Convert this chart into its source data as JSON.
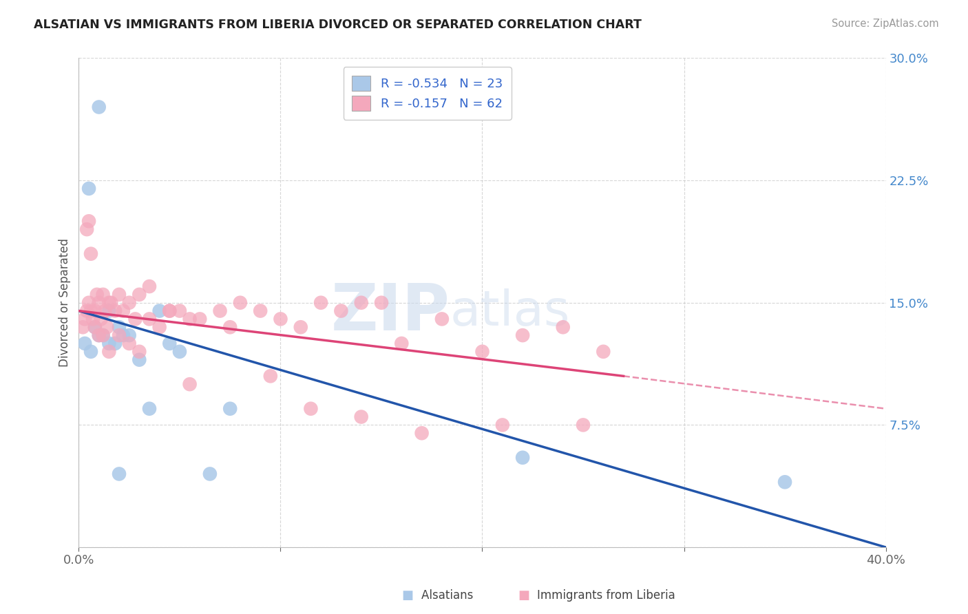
{
  "title": "ALSATIAN VS IMMIGRANTS FROM LIBERIA DIVORCED OR SEPARATED CORRELATION CHART",
  "source": "Source: ZipAtlas.com",
  "ylabel": "Divorced or Separated",
  "watermark_zip": "ZIP",
  "watermark_atlas": "atlas",
  "legend_r": [
    -0.534,
    -0.157
  ],
  "legend_n": [
    23,
    62
  ],
  "blue_color": "#aac8e8",
  "pink_color": "#f4a8bc",
  "blue_line_color": "#2255aa",
  "pink_line_color": "#dd4477",
  "xmin": 0.0,
  "xmax": 40.0,
  "ymin": 0.0,
  "ymax": 30.0,
  "ytick_labels": [
    "",
    "7.5%",
    "15.0%",
    "22.5%",
    "30.0%"
  ],
  "ytick_vals": [
    0.0,
    7.5,
    15.0,
    22.5,
    30.0
  ],
  "xtick_labels": [
    "0.0%",
    "",
    "",
    "",
    "40.0%"
  ],
  "xtick_vals": [
    0.0,
    10.0,
    20.0,
    30.0,
    40.0
  ],
  "blue_x": [
    1.0,
    0.5,
    1.5,
    0.8,
    1.2,
    2.0,
    1.8,
    2.5,
    3.5,
    5.0,
    4.5,
    6.5,
    2.0,
    7.5,
    0.3,
    0.6,
    1.0,
    1.5,
    2.2,
    3.0,
    4.0,
    22.0,
    35.0
  ],
  "blue_y": [
    27.0,
    22.0,
    14.5,
    13.5,
    13.0,
    13.5,
    12.5,
    13.0,
    8.5,
    12.0,
    12.5,
    4.5,
    4.5,
    8.5,
    12.5,
    12.0,
    13.0,
    12.5,
    13.0,
    11.5,
    14.5,
    5.5,
    4.0
  ],
  "pink_x": [
    0.2,
    0.3,
    0.4,
    0.5,
    0.6,
    0.7,
    0.8,
    0.9,
    1.0,
    1.1,
    1.2,
    1.3,
    1.4,
    1.5,
    1.6,
    1.8,
    2.0,
    2.2,
    2.5,
    2.8,
    3.0,
    3.5,
    4.0,
    4.5,
    5.0,
    5.5,
    6.0,
    7.0,
    8.0,
    9.0,
    10.0,
    11.0,
    12.0,
    13.0,
    14.0,
    15.0,
    16.0,
    18.0,
    20.0,
    22.0,
    24.0,
    26.0,
    0.4,
    0.5,
    0.6,
    0.8,
    1.0,
    1.2,
    1.5,
    2.0,
    2.5,
    3.0,
    3.5,
    4.5,
    5.5,
    7.5,
    9.5,
    11.5,
    14.0,
    17.0,
    21.0,
    25.0
  ],
  "pink_y": [
    13.5,
    14.0,
    14.5,
    15.0,
    14.5,
    14.0,
    14.5,
    15.5,
    15.0,
    14.0,
    15.5,
    14.5,
    13.5,
    15.0,
    15.0,
    14.5,
    15.5,
    14.5,
    15.0,
    14.0,
    15.5,
    14.0,
    13.5,
    14.5,
    14.5,
    14.0,
    14.0,
    14.5,
    15.0,
    14.5,
    14.0,
    13.5,
    15.0,
    14.5,
    15.0,
    15.0,
    12.5,
    14.0,
    12.0,
    13.0,
    13.5,
    12.0,
    19.5,
    20.0,
    18.0,
    13.5,
    13.0,
    13.0,
    12.0,
    13.0,
    12.5,
    12.0,
    16.0,
    14.5,
    10.0,
    13.5,
    10.5,
    8.5,
    8.0,
    7.0,
    7.5,
    7.5
  ],
  "blue_line_x0": 0.0,
  "blue_line_x1": 40.0,
  "blue_line_y0": 14.5,
  "blue_line_y1": 0.0,
  "pink_line_x0": 0.0,
  "pink_line_x1": 27.0,
  "pink_line_y0": 14.5,
  "pink_line_y1": 10.5,
  "pink_dash_x0": 27.0,
  "pink_dash_x1": 40.0,
  "pink_dash_y0": 10.5,
  "pink_dash_y1": 8.5
}
